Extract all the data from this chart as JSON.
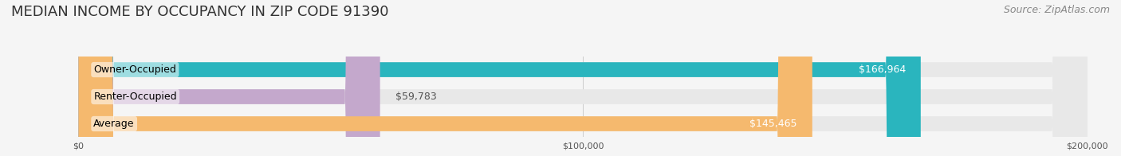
{
  "title": "MEDIAN INCOME BY OCCUPANCY IN ZIP CODE 91390",
  "source": "Source: ZipAtlas.com",
  "categories": [
    "Owner-Occupied",
    "Renter-Occupied",
    "Average"
  ],
  "values": [
    166964,
    59783,
    145465
  ],
  "bar_colors": [
    "#2ab5be",
    "#c4a8cc",
    "#f5b96e"
  ],
  "label_colors": [
    "#ffffff",
    "#555555",
    "#ffffff"
  ],
  "value_labels": [
    "$166,964",
    "$59,783",
    "$145,465"
  ],
  "xlim": [
    0,
    200000
  ],
  "xticks": [
    0,
    100000,
    200000
  ],
  "xticklabels": [
    "$0",
    "$100,000",
    "$200,000"
  ],
  "background_color": "#f5f5f5",
  "bar_background_color": "#e8e8e8",
  "title_fontsize": 13,
  "source_fontsize": 9,
  "label_fontsize": 9,
  "value_fontsize": 9,
  "bar_height": 0.55,
  "figsize": [
    14.06,
    1.96
  ]
}
